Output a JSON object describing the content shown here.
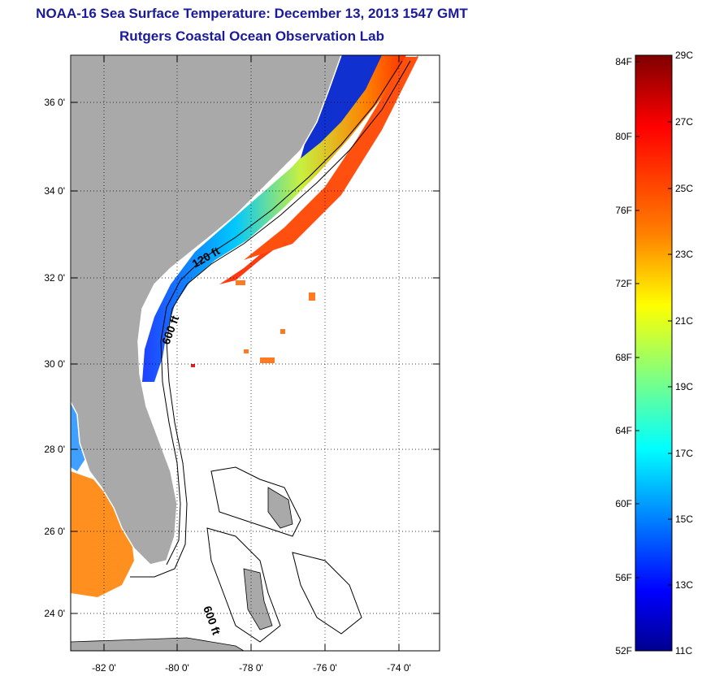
{
  "header": {
    "title": "NOAA-16 Sea Surface Temperature:  December 13, 2013 1547 GMT",
    "subtitle": "Rutgers Coastal Ocean Observation Lab"
  },
  "map": {
    "lat_ticks": [
      "36 0'",
      "34 0'",
      "32 0'",
      "30 0'",
      "28 0'",
      "26 0'",
      "24 0'"
    ],
    "lon_ticks": [
      "-82 0'",
      "-80 0'",
      "-78 0'",
      "-76 0'",
      "-74 0'"
    ],
    "contour_labels": [
      "120 ft",
      "600 ft",
      "600 ft"
    ],
    "land_color": "#a9a9a9"
  },
  "colorbar": {
    "f_labels": [
      "84F",
      "80F",
      "76F",
      "72F",
      "68F",
      "64F",
      "60F",
      "56F",
      "52F"
    ],
    "c_labels": [
      "29C",
      "27C",
      "25C",
      "23C",
      "21C",
      "19C",
      "17C",
      "15C",
      "13C",
      "11C"
    ],
    "colors_top_to_bottom": [
      "#7f0000",
      "#ff0000",
      "#ff8000",
      "#ffff00",
      "#80ff80",
      "#00ffff",
      "#0080ff",
      "#0000ff",
      "#00008f"
    ]
  }
}
